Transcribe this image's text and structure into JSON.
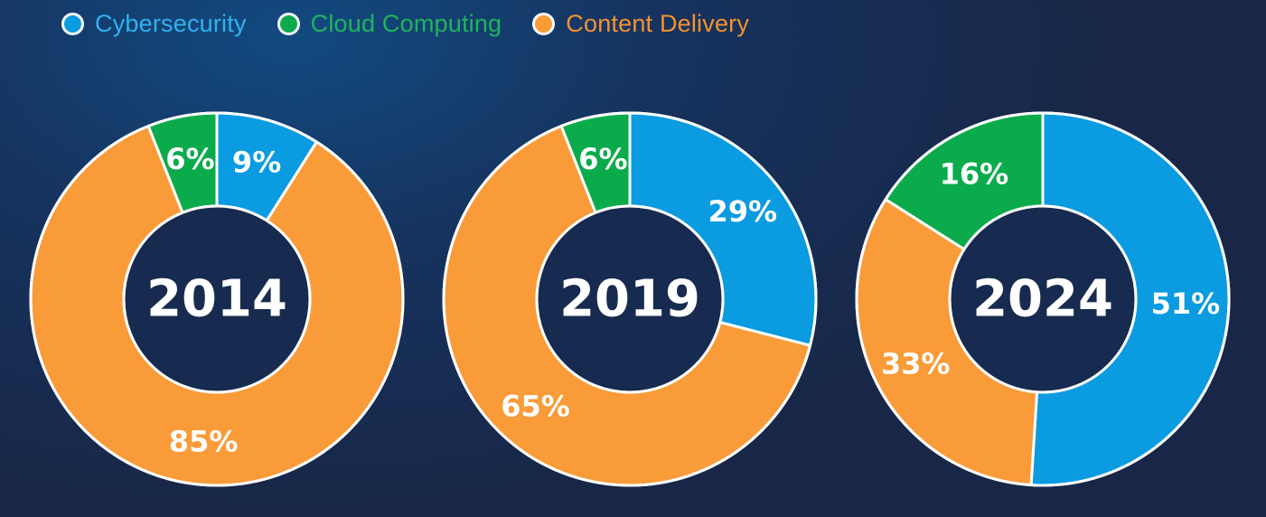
{
  "colors": {
    "Cybersecurity": "#0a9be0",
    "Cloud Computing": "#0bab4c",
    "Content Delivery": "#f99b38",
    "hole": "#172a4f",
    "stroke": "#ffffff"
  },
  "chart_data": {
    "type": "pie",
    "variant": "donut",
    "legend": {
      "placement": "top-left",
      "entries": [
        {
          "label": "Cybersecurity",
          "color": "#0a9be0",
          "text_color": "#2fb3f0"
        },
        {
          "label": "Cloud Computing",
          "color": "#0bab4c",
          "text_color": "#1fb45e"
        },
        {
          "label": "Content Delivery",
          "color": "#f99b38",
          "text_color": "#f6922e"
        }
      ]
    },
    "categories": [
      "Cybersecurity",
      "Cloud Computing",
      "Content Delivery"
    ],
    "charts": [
      {
        "center_label": "2014",
        "slices": [
          {
            "category": "Cybersecurity",
            "value": 9,
            "label": "9%"
          },
          {
            "category": "Content Delivery",
            "value": 85,
            "label": "85%"
          },
          {
            "category": "Cloud Computing",
            "value": 6,
            "label": "6%"
          }
        ]
      },
      {
        "center_label": "2019",
        "slices": [
          {
            "category": "Cybersecurity",
            "value": 29,
            "label": "29%"
          },
          {
            "category": "Content Delivery",
            "value": 65,
            "label": "65%"
          },
          {
            "category": "Cloud Computing",
            "value": 6,
            "label": "6%"
          }
        ]
      },
      {
        "center_label": "2024",
        "slices": [
          {
            "category": "Cybersecurity",
            "value": 51,
            "label": "51%"
          },
          {
            "category": "Content Delivery",
            "value": 33,
            "label": "33%"
          },
          {
            "category": "Cloud Computing",
            "value": 16,
            "label": "16%"
          }
        ]
      }
    ]
  }
}
